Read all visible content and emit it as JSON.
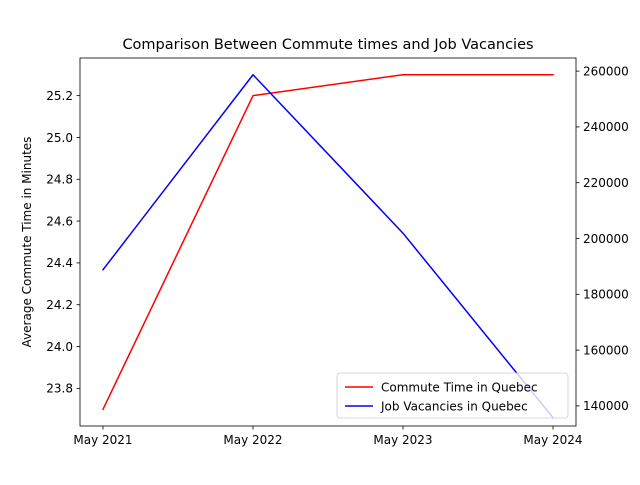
{
  "chart_data": {
    "type": "line",
    "title": "Comparison Between Commute times and Job Vacancies",
    "xlabel": "",
    "ylabel": "Average Commute Time in Minutes",
    "y2label": "",
    "categories": [
      "May 2021",
      "May 2022",
      "May 2023",
      "May 2024"
    ],
    "ylim": [
      23.62,
      25.38
    ],
    "y2lim": [
      132800,
      264700
    ],
    "yticks": [
      23.8,
      24.0,
      24.2,
      24.4,
      24.6,
      24.8,
      25.0,
      25.2
    ],
    "yticks_labels": [
      "23.8",
      "24.0",
      "24.2",
      "24.4",
      "24.6",
      "24.8",
      "25.0",
      "25.2"
    ],
    "y2ticks": [
      140000,
      160000,
      180000,
      200000,
      220000,
      240000,
      260000
    ],
    "y2ticks_labels": [
      "140000",
      "160000",
      "180000",
      "200000",
      "220000",
      "240000",
      "260000"
    ],
    "grid": false,
    "legend_position": "lower-right",
    "series": [
      {
        "name": "Commute Time in Quebec",
        "axis": "left",
        "color": "#ff0000",
        "values": [
          23.7,
          25.2,
          25.3,
          25.3
        ]
      },
      {
        "name": "Job Vacancies in Quebec",
        "axis": "right",
        "color": "#0000ff",
        "values": [
          188800,
          258700,
          201900,
          135800
        ]
      }
    ]
  }
}
